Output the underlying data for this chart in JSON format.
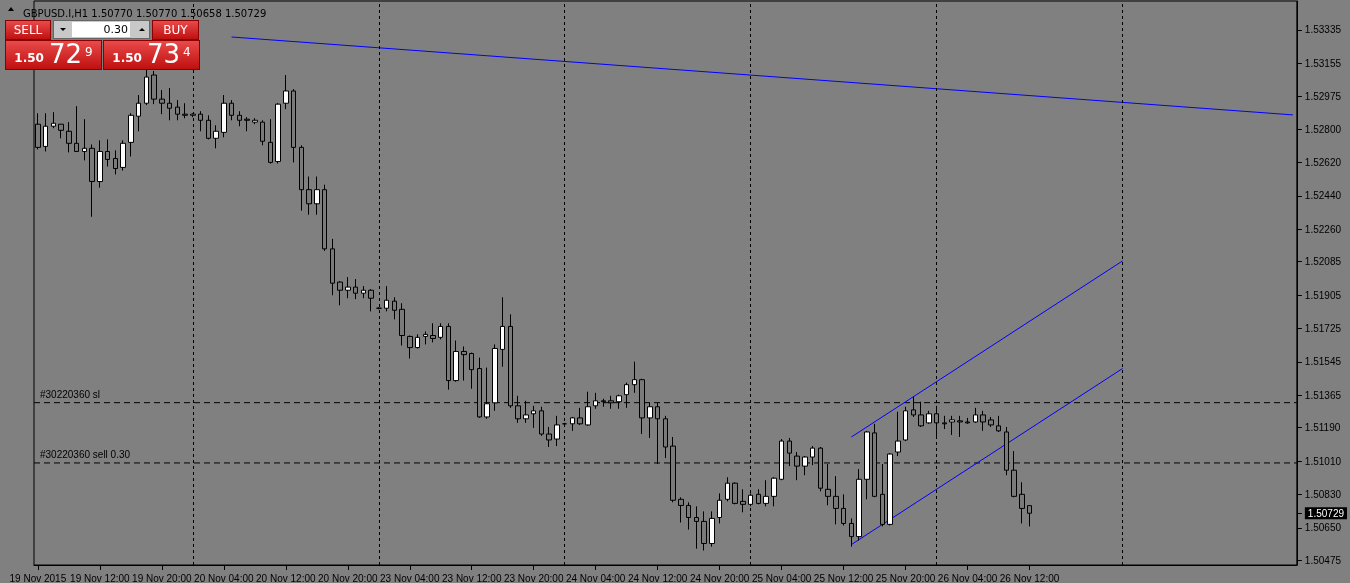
{
  "chart_data": {
    "type": "candlestick",
    "title": "GBPUSD.I,H1 1.50770 1.50770 1.50658 1.50729",
    "annotations": [
      "SELL",
      "0.30",
      "BUY",
      "1.50",
      "72$^{9}$",
      "1.50",
      "73$^{4}$"
    ],
    "categories": [
      "19 Nov 2015",
      null,
      null,
      null,
      null,
      null,
      null,
      null,
      "19 Nov 12:00",
      null,
      null,
      null,
      null,
      null,
      null,
      null,
      "19 Nov 20:00",
      null,
      null,
      null,
      null,
      null,
      null,
      null,
      "20 Nov 04:00",
      null,
      null,
      null,
      null,
      null,
      null,
      null,
      "20 Nov 12:00",
      null,
      null,
      null,
      null,
      null,
      null,
      null,
      "20 Nov 20:00",
      null,
      null,
      null,
      null,
      null,
      null,
      null,
      "23 Nov 04:00",
      null,
      null,
      null,
      null,
      null,
      null,
      null,
      "23 Nov 12:00",
      null,
      null,
      null,
      null,
      null,
      null,
      null,
      "23 Nov 20:00",
      null,
      null,
      null,
      null,
      null,
      null,
      null,
      "24 Nov 04:00",
      null,
      null,
      null,
      null,
      null,
      null,
      null,
      "24 Nov 12:00",
      null,
      null,
      null,
      null,
      null,
      null,
      null,
      "24 Nov 20:00",
      null,
      null,
      null,
      null,
      null,
      null,
      null,
      "25 Nov 04:00",
      null,
      null,
      null,
      null,
      null,
      null,
      null,
      "25 Nov 12:00",
      null,
      null,
      null,
      null,
      null,
      null,
      null,
      "25 Nov 20:00",
      null,
      null,
      null,
      null,
      null,
      null,
      null,
      "26 Nov 04:00",
      null,
      null,
      null,
      null,
      null,
      null,
      null,
      "26 Nov 12:00",
      null,
      null,
      null,
      null,
      null,
      null,
      null,
      null,
      null,
      null,
      null,
      null,
      null,
      null,
      null,
      null,
      null,
      null,
      null,
      null,
      null,
      null,
      null,
      null,
      null,
      null,
      null,
      null,
      null,
      null,
      null,
      null,
      null,
      null
    ],
    "ohlc": [
      [
        1.52826,
        1.52885,
        1.5269,
        1.52701
      ],
      [
        1.52706,
        1.52885,
        1.52679,
        1.52815
      ],
      [
        1.52815,
        1.52891,
        1.52804,
        1.52831
      ],
      [
        1.52826,
        1.52826,
        1.5275,
        1.52793
      ],
      [
        1.52788,
        1.52837,
        1.52674,
        1.52723
      ],
      [
        1.52723,
        1.52923,
        1.52679,
        1.52679
      ],
      [
        1.52679,
        1.52853,
        1.52631,
        1.52696
      ],
      [
        1.52696,
        1.52717,
        1.52327,
        1.52517
      ],
      [
        1.52517,
        1.52739,
        1.52484,
        1.52679
      ],
      [
        1.52679,
        1.52744,
        1.52598,
        1.52636
      ],
      [
        1.52641,
        1.52685,
        1.52555,
        1.52587
      ],
      [
        1.52593,
        1.52739,
        1.52576,
        1.52723
      ],
      [
        1.52728,
        1.52885,
        1.52652,
        1.52874
      ],
      [
        1.52869,
        1.52983,
        1.52788,
        1.52939
      ],
      [
        1.52939,
        1.53124,
        1.52929,
        1.5308
      ],
      [
        1.53091,
        1.53113,
        1.52934,
        1.52961
      ],
      [
        1.52961,
        1.5301,
        1.5288,
        1.52939
      ],
      [
        1.52939,
        1.53021,
        1.52847,
        1.52912
      ],
      [
        1.52918,
        1.52956,
        1.52847,
        1.5288
      ],
      [
        1.5288,
        1.52939,
        1.52858,
        1.52874
      ],
      [
        1.52874,
        1.52885,
        1.52864,
        1.5288
      ],
      [
        1.5288,
        1.52896,
        1.52788,
        1.52847
      ],
      [
        1.52847,
        1.52874,
        1.52744,
        1.5275
      ],
      [
        1.5275,
        1.5282,
        1.52696,
        1.52788
      ],
      [
        1.52782,
        1.52983,
        1.52755,
        1.52939
      ],
      [
        1.52939,
        1.52956,
        1.52847,
        1.52874
      ],
      [
        1.52874,
        1.52896,
        1.52815,
        1.52847
      ],
      [
        1.52853,
        1.52864,
        1.52788,
        1.52847
      ],
      [
        1.52837,
        1.52858,
        1.52826,
        1.52847
      ],
      [
        1.52837,
        1.52847,
        1.52712,
        1.52734
      ],
      [
        1.52728,
        1.52853,
        1.52614,
        1.5262
      ],
      [
        1.52625,
        1.52939,
        1.52614,
        1.52934
      ],
      [
        1.52939,
        1.53091,
        1.52907,
        1.53005
      ],
      [
        1.53005,
        1.53015,
        1.5262,
        1.52701
      ],
      [
        1.52701,
        1.52712,
        1.5236,
        1.52473
      ],
      [
        1.52473,
        1.52544,
        1.52338,
        1.52397
      ],
      [
        1.52397,
        1.52544,
        1.52338,
        1.52473
      ],
      [
        1.52473,
        1.525,
        1.52143,
        1.52154
      ],
      [
        1.52154,
        1.52208,
        1.51904,
        1.51969
      ],
      [
        1.51975,
        1.5198,
        1.5185,
        1.51931
      ],
      [
        1.51931,
        1.52002,
        1.51888,
        1.51948
      ],
      [
        1.51948,
        1.51991,
        1.51883,
        1.51915
      ],
      [
        1.51915,
        1.51953,
        1.51888,
        1.51931
      ],
      [
        1.51931,
        1.51937,
        1.51817,
        1.51888
      ],
      [
        1.51834,
        1.51839,
        1.51828,
        1.51834
      ],
      [
        1.51834,
        1.51953,
        1.51817,
        1.51877
      ],
      [
        1.51872,
        1.51893,
        1.51774,
        1.51823
      ],
      [
        1.51828,
        1.51861,
        1.51633,
        1.51687
      ],
      [
        1.51682,
        1.51687,
        1.51563,
        1.51622
      ],
      [
        1.51622,
        1.51693,
        1.51617,
        1.51677
      ],
      [
        1.51682,
        1.51709,
        1.51639,
        1.51693
      ],
      [
        1.51687,
        1.51753,
        1.5165,
        1.51671
      ],
      [
        1.51677,
        1.51753,
        1.51666,
        1.51736
      ],
      [
        1.51736,
        1.51753,
        1.51395,
        1.51444
      ],
      [
        1.51444,
        1.5166,
        1.51438,
        1.51601
      ],
      [
        1.51601,
        1.51628,
        1.51444,
        1.51584
      ],
      [
        1.5159,
        1.51595,
        1.514,
        1.51503
      ],
      [
        1.51509,
        1.51568,
        1.51243,
        1.51248
      ],
      [
        1.51248,
        1.51514,
        1.51238,
        1.51319
      ],
      [
        1.51324,
        1.51639,
        1.51281,
        1.51617
      ],
      [
        1.51612,
        1.51893,
        1.51519,
        1.51736
      ],
      [
        1.51736,
        1.51801,
        1.51297,
        1.51308
      ],
      [
        1.51308,
        1.51362,
        1.51216,
        1.51238
      ],
      [
        1.51238,
        1.51335,
        1.51216,
        1.51259
      ],
      [
        1.51265,
        1.51308,
        1.51189,
        1.51281
      ],
      [
        1.51281,
        1.51303,
        1.51146,
        1.51156
      ],
      [
        1.51156,
        1.51194,
        1.51086,
        1.51124
      ],
      [
        1.51129,
        1.51254,
        1.51091,
        1.51205
      ],
      [
        1.51211,
        1.51216,
        1.51205,
        1.51211
      ],
      [
        1.51211,
        1.51248,
        1.51173,
        1.51243
      ],
      [
        1.51243,
        1.51297,
        1.51205,
        1.51211
      ],
      [
        1.51205,
        1.51384,
        1.512,
        1.51303
      ],
      [
        1.51308,
        1.51378,
        1.51292,
        1.51335
      ],
      [
        1.51335,
        1.51346,
        1.51303,
        1.5133
      ],
      [
        1.51335,
        1.51362,
        1.51292,
        1.51324
      ],
      [
        1.5133,
        1.51368,
        1.51292,
        1.51362
      ],
      [
        1.51368,
        1.51433,
        1.51297,
        1.51422
      ],
      [
        1.51422,
        1.51546,
        1.51378,
        1.51449
      ],
      [
        1.51449,
        1.51454,
        1.51156,
        1.51243
      ],
      [
        1.51243,
        1.51324,
        1.51135,
        1.51303
      ],
      [
        1.51303,
        1.51324,
        1.50994,
        1.51238
      ],
      [
        1.51238,
        1.51254,
        1.51026,
        1.51086
      ],
      [
        1.51091,
        1.5114,
        1.50788,
        1.50799
      ],
      [
        1.50804,
        1.50815,
        1.50679,
        1.50771
      ],
      [
        1.50771,
        1.50788,
        1.50641,
        1.50706
      ],
      [
        1.50706,
        1.50766,
        1.50538,
        1.50685
      ],
      [
        1.50685,
        1.50739,
        1.50528,
        1.50566
      ],
      [
        1.50566,
        1.50739,
        1.50549,
        1.50701
      ],
      [
        1.50706,
        1.50836,
        1.50674,
        1.50799
      ],
      [
        1.50804,
        1.50923,
        1.50793,
        1.50891
      ],
      [
        1.50891,
        1.50896,
        1.50777,
        1.50782
      ],
      [
        1.50793,
        1.50858,
        1.50734,
        1.50777
      ],
      [
        1.50777,
        1.50836,
        1.50766,
        1.50826
      ],
      [
        1.50831,
        1.50858,
        1.50777,
        1.50782
      ],
      [
        1.50782,
        1.50907,
        1.50766,
        1.5082
      ],
      [
        1.5082,
        1.50923,
        1.50766,
        1.50918
      ],
      [
        1.50912,
        1.51129,
        1.50907,
        1.51118
      ],
      [
        1.51118,
        1.51135,
        1.50983,
        1.51053
      ],
      [
        1.51037,
        1.51059,
        1.50907,
        1.50983
      ],
      [
        1.50983,
        1.51037,
        1.50934,
        1.51032
      ],
      [
        1.51032,
        1.51091,
        1.50988,
        1.5108
      ],
      [
        1.5108,
        1.51086,
        1.50847,
        1.50864
      ],
      [
        1.50858,
        1.50994,
        1.50772,
        1.5082
      ],
      [
        1.5082,
        1.50929,
        1.50669,
        1.50755
      ],
      [
        1.50755,
        1.50831,
        1.50663,
        1.50674
      ],
      [
        1.50674,
        1.50701,
        1.50549,
        1.50603
      ],
      [
        1.50603,
        1.50967,
        1.50582,
        1.50912
      ],
      [
        1.50912,
        1.51173,
        1.50804,
        1.51167
      ],
      [
        1.51162,
        1.51211,
        1.50815,
        1.5082
      ],
      [
        1.50831,
        1.50994,
        1.50658,
        1.50669
      ],
      [
        1.50669,
        1.51053,
        1.50663,
        1.51048
      ],
      [
        1.51059,
        1.51276,
        1.51037,
        1.51118
      ],
      [
        1.51124,
        1.51303,
        1.51118,
        1.51281
      ],
      [
        1.51286,
        1.51357,
        1.51248,
        1.51259
      ],
      [
        1.51259,
        1.5133,
        1.51194,
        1.512
      ],
      [
        1.51216,
        1.51281,
        1.51211,
        1.51265
      ],
      [
        1.51265,
        1.51308,
        1.5114,
        1.51216
      ],
      [
        1.51216,
        1.51254,
        1.51183,
        1.51211
      ],
      [
        1.51221,
        1.51254,
        1.51151,
        1.51232
      ],
      [
        1.51227,
        1.51254,
        1.5114,
        1.51221
      ],
      [
        1.51221,
        1.51243,
        1.51211,
        1.51216
      ],
      [
        1.51221,
        1.51297,
        1.51216,
        1.51259
      ],
      [
        1.51259,
        1.51281,
        1.51173,
        1.51221
      ],
      [
        1.51232,
        1.51248,
        1.51194,
        1.51205
      ],
      [
        1.512,
        1.51254,
        1.51167,
        1.51173
      ],
      [
        1.51167,
        1.51194,
        1.50934,
        1.50961
      ],
      [
        1.50961,
        1.51064,
        1.50815,
        1.5082
      ],
      [
        1.50831,
        1.50896,
        1.50674,
        1.50755
      ],
      [
        1.5077,
        1.5077,
        1.50658,
        1.50729
      ],
      null,
      null,
      null,
      null,
      null,
      null,
      null,
      null,
      null,
      null,
      null,
      null,
      null,
      null,
      null,
      null,
      null,
      null,
      null,
      null,
      null,
      null,
      null,
      null,
      null,
      null,
      null,
      null,
      null,
      null,
      null,
      null,
      null,
      null
    ],
    "series": [
      {
        "type": "line",
        "color": "#0000ff",
        "values": [
          null,
          null,
          null,
          null,
          null,
          null,
          null,
          null,
          null,
          null,
          null,
          null,
          null,
          null,
          null,
          null,
          null,
          null,
          null,
          null,
          null,
          null,
          null,
          null,
          null,
          1.53296,
          null,
          null,
          null,
          null,
          null,
          null,
          null,
          null,
          null,
          null,
          null,
          null,
          null,
          null,
          null,
          null,
          null,
          null,
          null,
          null,
          null,
          null,
          null,
          null,
          null,
          null,
          null,
          null,
          null,
          null,
          null,
          null,
          null,
          null,
          null,
          null,
          null,
          null,
          null,
          null,
          null,
          null,
          null,
          null,
          null,
          null,
          null,
          null,
          null,
          null,
          null,
          null,
          null,
          null,
          null,
          null,
          null,
          null,
          null,
          null,
          null,
          null,
          null,
          null,
          null,
          null,
          null,
          null,
          null,
          null,
          null,
          null,
          null,
          null,
          null,
          null,
          null,
          null,
          null,
          null,
          null,
          null,
          null,
          null,
          null,
          null,
          null,
          null,
          null,
          null,
          null,
          null,
          null,
          null,
          null,
          null,
          null,
          null,
          null,
          null,
          null,
          null,
          null,
          null,
          null,
          null,
          null,
          null,
          null,
          null,
          null,
          null,
          null,
          null,
          null,
          null,
          null,
          null,
          null,
          null,
          null,
          null,
          null,
          null,
          null,
          null,
          null,
          null,
          null,
          null,
          null,
          null,
          null,
          null,
          null,
          null,
          1.52876
        ]
      },
      {
        "type": "line",
        "color": "#0000ff",
        "values": [
          null,
          null,
          null,
          null,
          null,
          null,
          null,
          null,
          null,
          null,
          null,
          null,
          null,
          null,
          null,
          null,
          null,
          null,
          null,
          null,
          null,
          null,
          null,
          null,
          null,
          null,
          null,
          null,
          null,
          null,
          null,
          null,
          null,
          null,
          null,
          null,
          null,
          null,
          null,
          null,
          null,
          null,
          null,
          null,
          null,
          null,
          null,
          null,
          null,
          null,
          null,
          null,
          null,
          null,
          null,
          null,
          null,
          null,
          null,
          null,
          null,
          null,
          null,
          null,
          null,
          null,
          null,
          null,
          null,
          null,
          null,
          null,
          null,
          null,
          null,
          null,
          null,
          null,
          null,
          null,
          null,
          null,
          null,
          null,
          null,
          null,
          null,
          null,
          null,
          null,
          null,
          null,
          null,
          null,
          null,
          null,
          null,
          null,
          null,
          null,
          null,
          null,
          null,
          null,
          null,
          1.5114,
          null,
          null,
          null,
          null,
          null,
          null,
          null,
          null,
          null,
          null,
          null,
          null,
          null,
          null,
          null,
          null,
          null,
          null,
          null,
          null,
          null,
          null,
          null,
          null,
          null,
          null,
          null,
          null,
          null,
          null,
          null,
          null,
          null,
          null,
          1.52089,
          null,
          null,
          null,
          null,
          null,
          null,
          null,
          null,
          null,
          null,
          null,
          null,
          null,
          null,
          null,
          null,
          null,
          null,
          null,
          null,
          null,
          null
        ]
      },
      {
        "type": "line",
        "color": "#0000ff",
        "values": [
          null,
          null,
          null,
          null,
          null,
          null,
          null,
          null,
          null,
          null,
          null,
          null,
          null,
          null,
          null,
          null,
          null,
          null,
          null,
          null,
          null,
          null,
          null,
          null,
          null,
          null,
          null,
          null,
          null,
          null,
          null,
          null,
          null,
          null,
          null,
          null,
          null,
          null,
          null,
          null,
          null,
          null,
          null,
          null,
          null,
          null,
          null,
          null,
          null,
          null,
          null,
          null,
          null,
          null,
          null,
          null,
          null,
          null,
          null,
          null,
          null,
          null,
          null,
          null,
          null,
          null,
          null,
          null,
          null,
          null,
          null,
          null,
          null,
          null,
          null,
          null,
          null,
          null,
          null,
          null,
          null,
          null,
          null,
          null,
          null,
          null,
          null,
          null,
          null,
          null,
          null,
          null,
          null,
          null,
          null,
          null,
          null,
          null,
          null,
          null,
          null,
          null,
          null,
          null,
          null,
          1.5056,
          null,
          null,
          null,
          null,
          null,
          null,
          null,
          null,
          null,
          null,
          null,
          null,
          null,
          null,
          null,
          null,
          null,
          null,
          null,
          null,
          null,
          null,
          null,
          null,
          null,
          null,
          null,
          null,
          null,
          null,
          null,
          null,
          null,
          null,
          1.51509,
          null,
          null,
          null,
          null,
          null,
          null,
          null,
          null,
          null,
          null,
          null,
          null,
          null,
          null,
          null,
          null,
          null,
          null,
          null,
          null,
          null,
          null
        ]
      }
    ],
    "marker": "none",
    "ylim": [
      1.5045,
      1.5349
    ],
    "yticks": [
      {
        "value": 1.53335,
        "label": "1.53335"
      },
      {
        "value": 1.53155,
        "label": "1.53155"
      },
      {
        "value": 1.52975,
        "label": "1.52975"
      },
      {
        "value": 1.528,
        "label": "1.52800"
      },
      {
        "value": 1.5262,
        "label": "1.52620"
      },
      {
        "value": 1.5244,
        "label": "1.52440"
      },
      {
        "value": 1.5226,
        "label": "1.52260"
      },
      {
        "value": 1.52085,
        "label": "1.52085"
      },
      {
        "value": 1.51905,
        "label": "1.51905"
      },
      {
        "value": 1.51725,
        "label": "1.51725"
      },
      {
        "value": 1.51545,
        "label": "1.51545"
      },
      {
        "value": 1.51365,
        "label": "1.51365"
      },
      {
        "value": 1.5119,
        "label": "1.51190"
      },
      {
        "value": 1.5101,
        "label": "1.51010"
      },
      {
        "value": 1.5083,
        "label": "1.50830"
      },
      {
        "value": 1.50729,
        "label": "1.50729"
      },
      {
        "value": 1.5065,
        "label": "1.50650"
      },
      {
        "value": 1.50475,
        "label": "1.50475"
      }
    ],
    "ref_lines": [
      {
        "axis": "y",
        "value": 1.51325,
        "label": "#30220360 sl",
        "line_style": "dashed"
      },
      {
        "axis": "y",
        "value": 1.51,
        "label": "#30220360 sell 0.30",
        "line_style": "dashed"
      }
    ]
  }
}
